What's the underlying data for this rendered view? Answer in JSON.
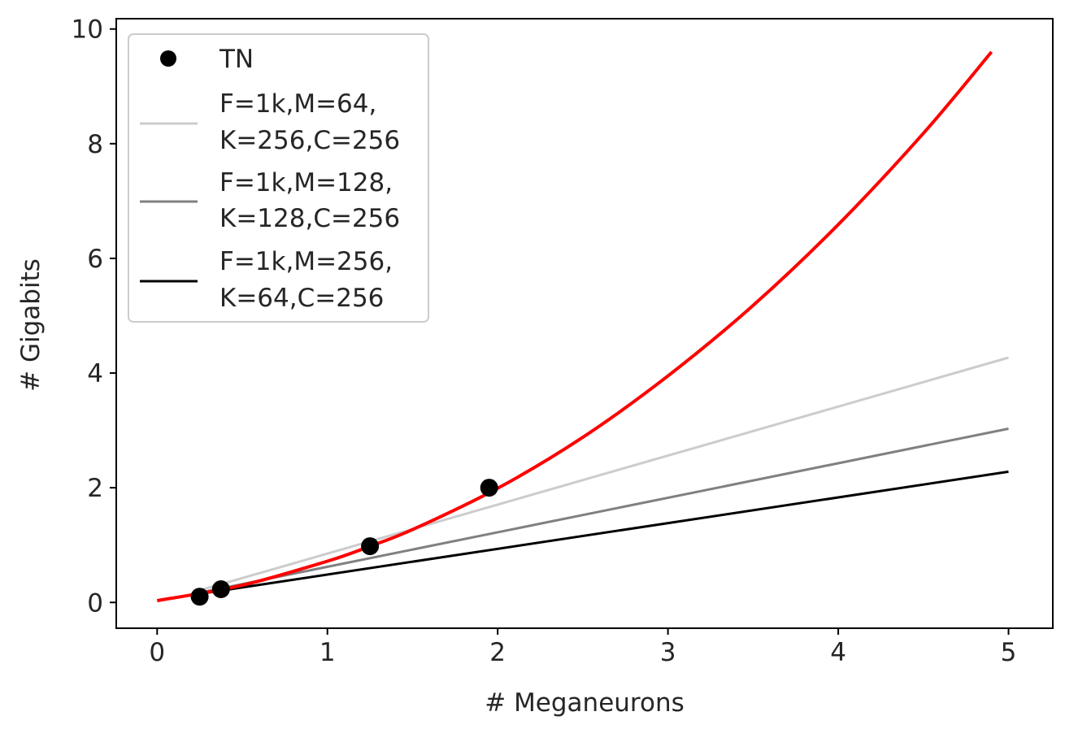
{
  "chart_data": {
    "type": "line",
    "title": "",
    "xlabel": "# Meganeurons",
    "ylabel": "# Gigabits",
    "xlim": [
      -0.24,
      5.26
    ],
    "ylim": [
      -0.45,
      10.18
    ],
    "xticks": [
      "0",
      "1",
      "2",
      "3",
      "4",
      "5"
    ],
    "yticks": [
      "0",
      "2",
      "4",
      "6",
      "8",
      "10"
    ],
    "grid": false,
    "legend_position": "upper-left",
    "points": {
      "name": "TN",
      "color": "#000000",
      "x": [
        0.25,
        0.375,
        1.25,
        1.95
      ],
      "y": [
        0.1,
        0.23,
        0.98,
        2.0
      ]
    },
    "curve": {
      "name": "",
      "color": "#ff0000",
      "x": [
        0,
        0.5,
        1,
        1.25,
        1.5,
        2,
        2.5,
        3,
        3.5,
        4,
        4.5,
        4.9
      ],
      "y": [
        0.03,
        0.3,
        0.72,
        0.98,
        1.27,
        1.99,
        2.88,
        3.95,
        5.18,
        6.59,
        8.18,
        9.6
      ]
    },
    "series": [
      {
        "name_line1": "F=1k,M=64,",
        "name_line2": "K=256,C=256",
        "color": "#cccccc",
        "x": [
          0.25,
          5
        ],
        "y": [
          0.21,
          4.27
        ]
      },
      {
        "name_line1": "F=1k,M=128,",
        "name_line2": "K=128,C=256",
        "color": "#808080",
        "x": [
          0.25,
          5
        ],
        "y": [
          0.17,
          3.03
        ]
      },
      {
        "name_line1": "F=1k,M=256,",
        "name_line2": "K=64,C=256",
        "color": "#000000",
        "x": [
          0.25,
          5
        ],
        "y": [
          0.15,
          2.28
        ]
      }
    ]
  }
}
